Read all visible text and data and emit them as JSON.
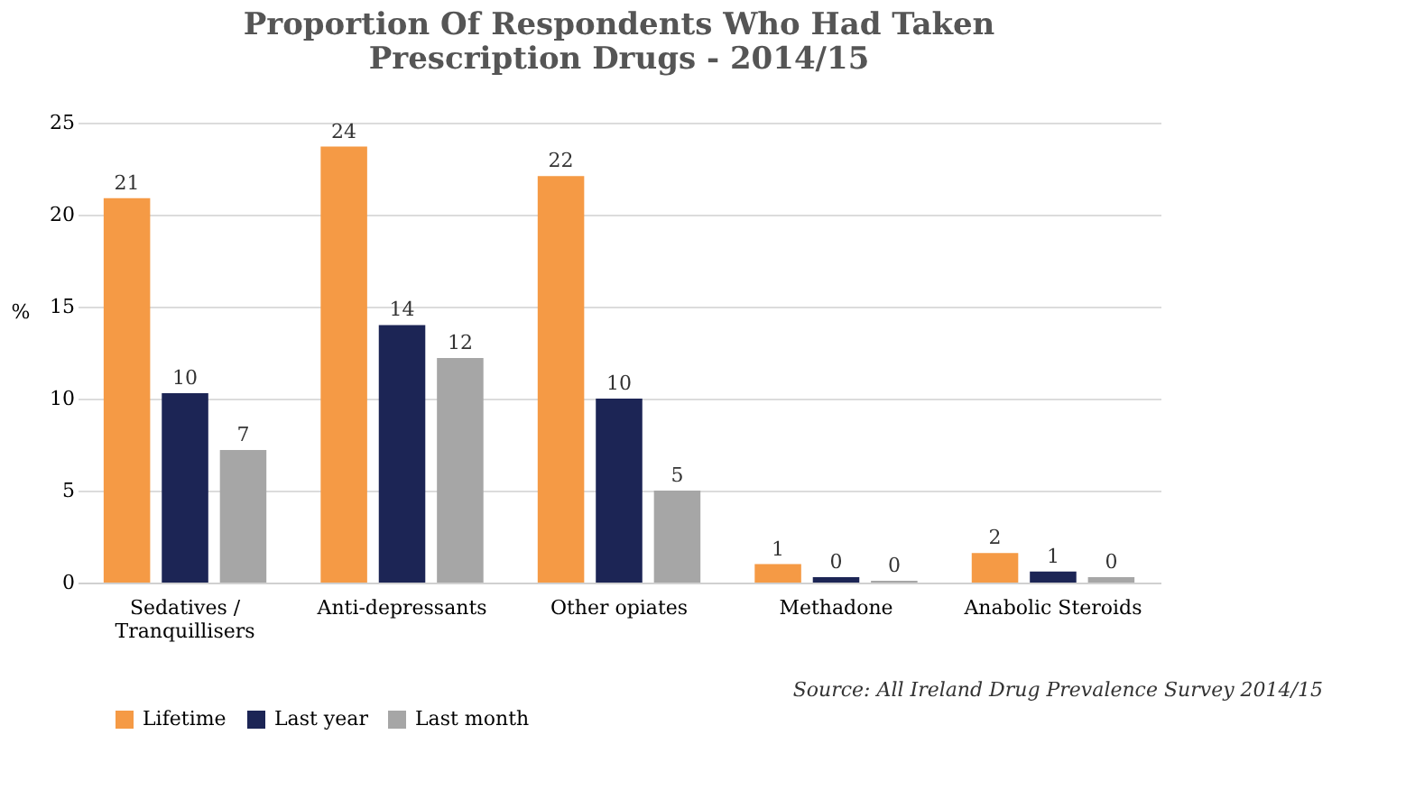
{
  "chart_data": {
    "type": "bar",
    "title": "Proportion Of Respondents Who Had Taken\nPrescription Drugs - 2014/15",
    "ylabel": "%",
    "categories": [
      "Sedatives /\nTranquillisers",
      "Anti-depressants",
      "Other opiates",
      "Methadone",
      "Anabolic Steroids"
    ],
    "series": [
      {
        "name": "Lifetime",
        "color": "#f59a45",
        "values": [
          20.9,
          23.7,
          22.1,
          1.0,
          1.6
        ],
        "value_labels": [
          "21",
          "24",
          "22",
          "1",
          "2"
        ]
      },
      {
        "name": "Last year",
        "color": "#1c2555",
        "values": [
          10.3,
          14.0,
          10.0,
          0.3,
          0.6
        ],
        "value_labels": [
          "10",
          "14",
          "10",
          "0",
          "1"
        ]
      },
      {
        "name": "Last month",
        "color": "#a6a6a6",
        "values": [
          7.2,
          12.2,
          5.0,
          0.1,
          0.3
        ],
        "value_labels": [
          "7",
          "12",
          "5",
          "0",
          "0"
        ]
      }
    ],
    "ylim": [
      0,
      25
    ],
    "yticks": [
      0,
      5,
      10,
      15,
      20,
      25
    ],
    "grid": "y",
    "legend": "bottom",
    "annotations": [
      "Source: All Ireland Drug Prevalence Survey 2014/15"
    ]
  }
}
